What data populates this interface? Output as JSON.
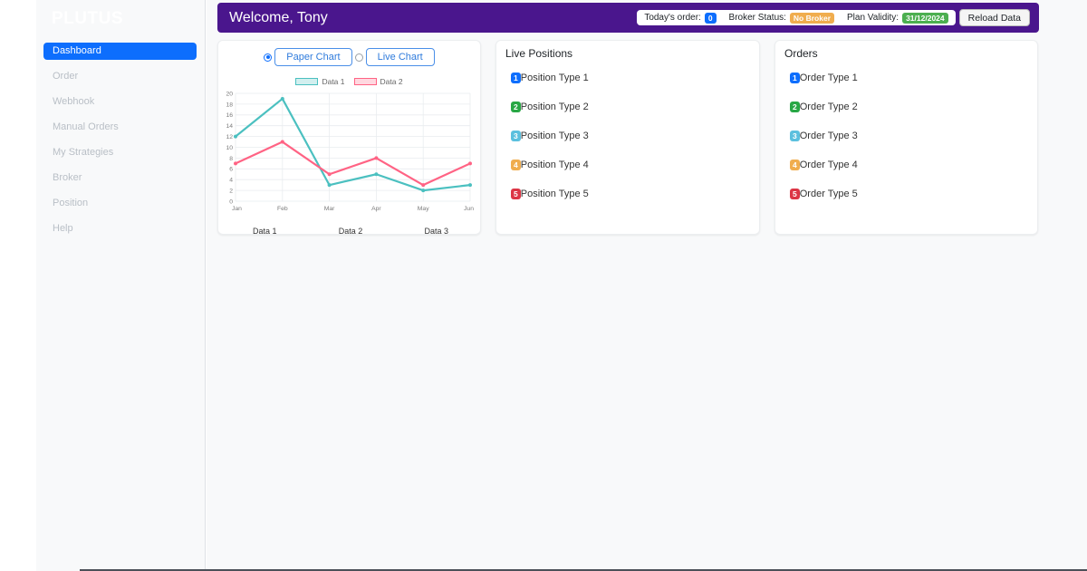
{
  "brand": "PLUTUS",
  "sidebar": {
    "items": [
      {
        "label": "Dashboard",
        "active": true
      },
      {
        "label": "Order",
        "active": false
      },
      {
        "label": "Webhook",
        "active": false
      },
      {
        "label": "Manual Orders",
        "active": false
      },
      {
        "label": "My Strategies",
        "active": false
      },
      {
        "label": "Broker",
        "active": false
      },
      {
        "label": "Position",
        "active": false
      },
      {
        "label": "Help",
        "active": false
      }
    ]
  },
  "header": {
    "welcome": "Welcome, Tony",
    "todays_order_label": "Today's order:",
    "todays_order_value": "0",
    "broker_status_label": "Broker Status:",
    "broker_status_value": "No Broker",
    "plan_validity_label": "Plan Validity:",
    "plan_validity_value": "31/12/2024",
    "reload_button": "Reload Data"
  },
  "chart_card": {
    "paper_chart_label": "Paper Chart",
    "live_chart_label": "Live Chart",
    "paper_selected": true,
    "bottom_labels": [
      "Data 1",
      "Data 2",
      "Data 3"
    ]
  },
  "chart_data": {
    "type": "line",
    "categories": [
      "Jan",
      "Feb",
      "Mar",
      "Apr",
      "May",
      "Jun"
    ],
    "series": [
      {
        "name": "Data 1",
        "values": [
          12,
          19,
          3,
          5,
          2,
          3
        ],
        "color": "#4bc0c0",
        "fill": "rgba(75,192,192,0.25)"
      },
      {
        "name": "Data 2",
        "values": [
          7,
          11,
          5,
          8,
          3,
          7
        ],
        "color": "#ff6384",
        "fill": "rgba(255,99,132,0.25)"
      }
    ],
    "title": "",
    "xlabel": "",
    "ylabel": "",
    "ylim": [
      0,
      20
    ],
    "ytick_step": 2,
    "grid": true,
    "legend_position": "top"
  },
  "positions_card": {
    "title": "Live Positions",
    "items": [
      {
        "badge": "1",
        "label": "Position Type 1",
        "color": "#0d6efd"
      },
      {
        "badge": "2",
        "label": "Position Type 2",
        "color": "#28a745"
      },
      {
        "badge": "3",
        "label": "Position Type 3",
        "color": "#5bc0de"
      },
      {
        "badge": "4",
        "label": "Position Type 4",
        "color": "#f0ad4e"
      },
      {
        "badge": "5",
        "label": "Position Type 5",
        "color": "#dc3545"
      }
    ]
  },
  "orders_card": {
    "title": "Orders",
    "items": [
      {
        "badge": "1",
        "label": "Order Type 1",
        "color": "#0d6efd"
      },
      {
        "badge": "2",
        "label": "Order Type 2",
        "color": "#28a745"
      },
      {
        "badge": "3",
        "label": "Order Type 3",
        "color": "#5bc0de"
      },
      {
        "badge": "4",
        "label": "Order Type 4",
        "color": "#f0ad4e"
      },
      {
        "badge": "5",
        "label": "Order Type 5",
        "color": "#dc3545"
      }
    ]
  },
  "colors": {
    "header_purple": "#4a168d",
    "primary_blue": "#0d6efd",
    "success_green": "#28a745",
    "validity_green": "#4caf50",
    "warning_orange": "#f0ad4e",
    "danger_red": "#dc3545",
    "info_blue": "#5bc0de",
    "chart_teal": "#4bc0c0",
    "chart_pink": "#ff6384",
    "sidebar_bg": "#f8f9fa"
  }
}
